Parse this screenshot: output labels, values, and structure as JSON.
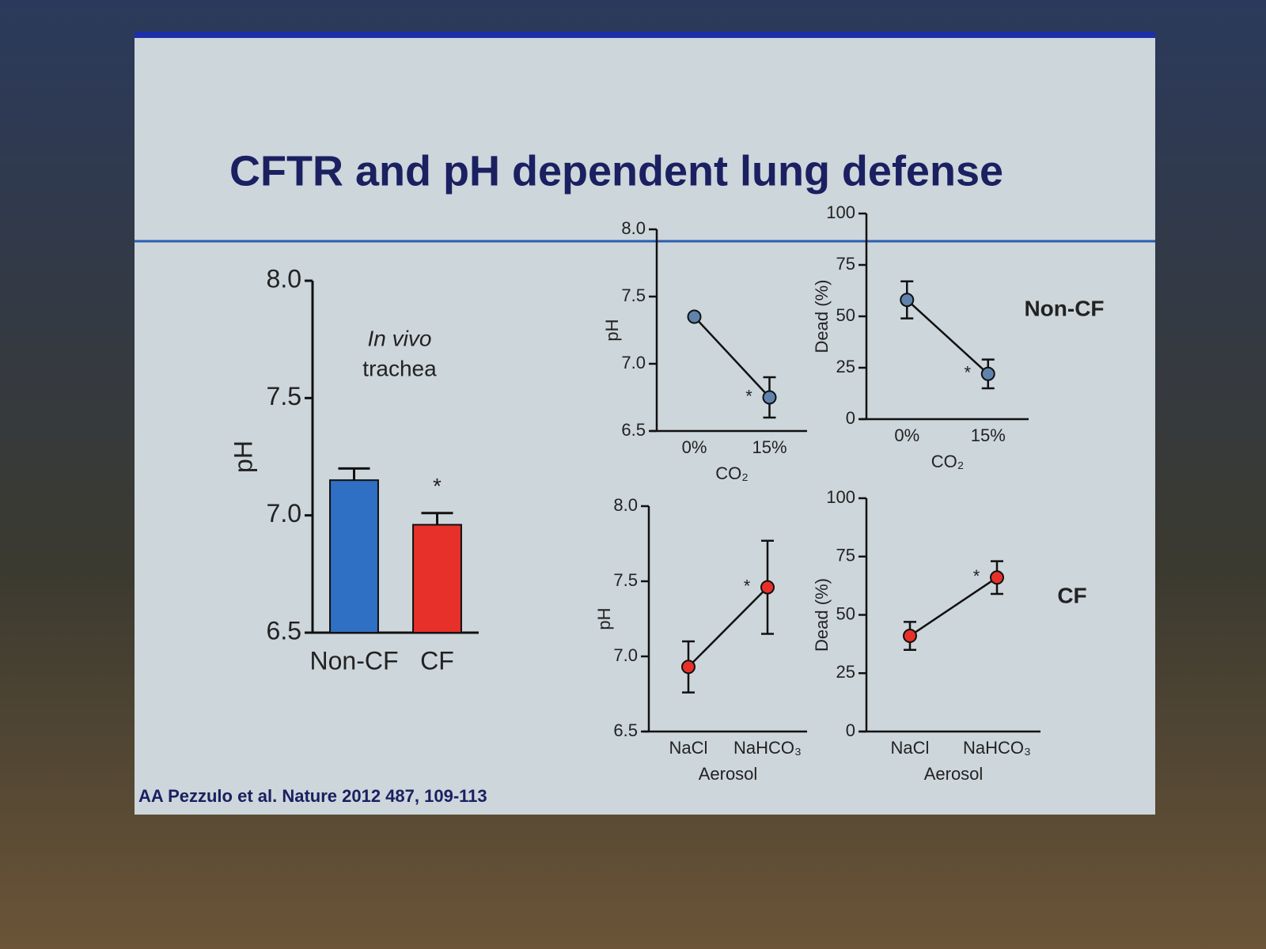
{
  "slide": {
    "title": "CFTR and pH dependent lung defense",
    "citation": "AA Pezzulo et al. Nature 2012 487, 109-113",
    "row_labels": [
      "Non-CF",
      "CF"
    ]
  },
  "chart_data": [
    {
      "type": "bar",
      "categories": [
        "Non-CF",
        "CF"
      ],
      "values": [
        7.15,
        6.96
      ],
      "errors": [
        0.05,
        0.05
      ],
      "colors": [
        "#2f6fc4",
        "#e8302a"
      ],
      "ylabel": "pH",
      "annotation": [
        "In vivo",
        "trachea"
      ],
      "value_annotations": [
        null,
        "*"
      ],
      "ylim": [
        6.5,
        8.0
      ],
      "yticks": [
        6.5,
        {
          "value": 7.0,
          "label": "7.0"
        },
        7.5,
        {
          "value": 8.0,
          "label": "8.0"
        }
      ]
    },
    {
      "type": "line",
      "categories": [
        "0%",
        "15%"
      ],
      "values": [
        7.35,
        6.75
      ],
      "errors": [
        null,
        0.15
      ],
      "color": "#5f83ad",
      "ylabel": "pH",
      "xlabel": "CO₂",
      "value_annotations": [
        null,
        "*"
      ],
      "ylim": [
        6.5,
        8.0
      ],
      "yticks": [
        6.5,
        {
          "value": 7.0,
          "label": "7.0"
        },
        7.5,
        {
          "value": 8.0,
          "label": "8.0"
        }
      ]
    },
    {
      "type": "line",
      "categories": [
        "0%",
        "15%"
      ],
      "values": [
        58,
        22
      ],
      "errors": [
        9,
        7
      ],
      "color": "#5f83ad",
      "ylabel": "Dead (%)",
      "xlabel": "CO₂",
      "value_annotations": [
        null,
        "*"
      ],
      "ylim": [
        0,
        100
      ],
      "yticks": [
        0,
        25,
        50,
        75,
        100
      ]
    },
    {
      "type": "line",
      "categories": [
        "NaCl",
        "NaHCO₃"
      ],
      "values": [
        6.93,
        7.46
      ],
      "errors": [
        0.17,
        0.31
      ],
      "color": "#e8302a",
      "ylabel": "pH",
      "xlabel": "Aerosol",
      "value_annotations": [
        null,
        "*"
      ],
      "ylim": [
        6.5,
        8.0
      ],
      "yticks": [
        6.5,
        {
          "value": 7.0,
          "label": "7.0"
        },
        7.5,
        {
          "value": 8.0,
          "label": "8.0"
        }
      ]
    },
    {
      "type": "line",
      "categories": [
        "NaCl",
        "NaHCO₃"
      ],
      "values": [
        41,
        66
      ],
      "errors": [
        6,
        7
      ],
      "color": "#e8302a",
      "ylabel": "Dead (%)",
      "xlabel": "Aerosol",
      "value_annotations": [
        null,
        "*"
      ],
      "ylim": [
        0,
        100
      ],
      "yticks": [
        0,
        25,
        50,
        75,
        100
      ]
    }
  ]
}
